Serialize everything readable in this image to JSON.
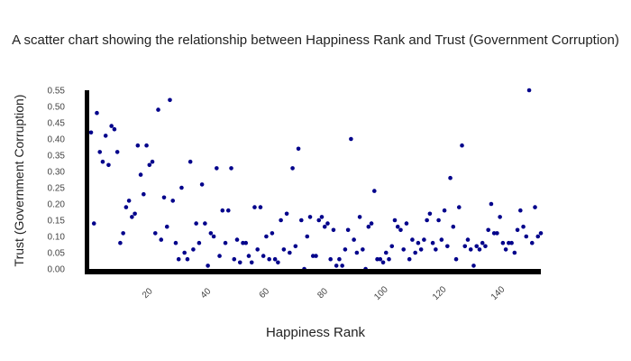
{
  "chart_data": {
    "type": "scatter",
    "title": "A scatter chart showing the relationship between Happiness Rank and Trust (Government Corruption)",
    "xlabel": "Happiness Rank",
    "ylabel": "Trust (Government Corruption)",
    "xlim": [
      1,
      155
    ],
    "ylim": [
      0,
      0.55
    ],
    "x_ticks": [
      20,
      40,
      60,
      80,
      100,
      120,
      140
    ],
    "y_ticks": [
      "0.00",
      "0.05",
      "0.10",
      "0.15",
      "0.20",
      "0.25",
      "0.30",
      "0.35",
      "0.40",
      "0.45",
      "0.50",
      "0.55"
    ],
    "grid": false,
    "legend": "none",
    "colors": {
      "marker": "#00008b",
      "axis": "#000000"
    },
    "series": [
      {
        "x": [
          1,
          2,
          3,
          4,
          5,
          6,
          7,
          8,
          9,
          10,
          11,
          12,
          13,
          14,
          15,
          16,
          17,
          18,
          19,
          20,
          21,
          22,
          23,
          24,
          25,
          26,
          27,
          28,
          29,
          30,
          31,
          32,
          33,
          34,
          35,
          36,
          37,
          38,
          39,
          40,
          41,
          42,
          43,
          44,
          45,
          46,
          47,
          48,
          49,
          50,
          51,
          52,
          53,
          54,
          55,
          56,
          57,
          58,
          59,
          60,
          61,
          62,
          63,
          64,
          65,
          66,
          67,
          68,
          69,
          70,
          71,
          72,
          73,
          74,
          75,
          76,
          77,
          78,
          79,
          80,
          81,
          82,
          83,
          84,
          85,
          86,
          87,
          88,
          89,
          90,
          91,
          92,
          93,
          94,
          95,
          96,
          97,
          98,
          99,
          100,
          101,
          102,
          103,
          104,
          105,
          106,
          107,
          108,
          109,
          110,
          111,
          112,
          113,
          114,
          115,
          116,
          117,
          118,
          119,
          120,
          121,
          122,
          123,
          124,
          125,
          126,
          127,
          128,
          129,
          130,
          131,
          132,
          133,
          134,
          135,
          136,
          137,
          138,
          139,
          140,
          141,
          142,
          143,
          144,
          145,
          146,
          147,
          148,
          149,
          150,
          151,
          152,
          153,
          154,
          155
        ],
        "y": [
          0.42,
          0.14,
          0.48,
          0.36,
          0.33,
          0.41,
          0.32,
          0.44,
          0.43,
          0.36,
          0.08,
          0.11,
          0.19,
          0.21,
          0.16,
          0.17,
          0.38,
          0.29,
          0.23,
          0.38,
          0.32,
          0.33,
          0.11,
          0.49,
          0.09,
          0.22,
          0.13,
          0.52,
          0.21,
          0.08,
          0.03,
          0.25,
          0.05,
          0.03,
          0.33,
          0.06,
          0.14,
          0.08,
          0.26,
          0.14,
          0.01,
          0.11,
          0.1,
          0.31,
          0.04,
          0.18,
          0.08,
          0.18,
          0.31,
          0.03,
          0.09,
          0.02,
          0.08,
          0.08,
          0.04,
          0.02,
          0.19,
          0.06,
          0.19,
          0.04,
          0.1,
          0.03,
          0.11,
          0.03,
          0.02,
          0.15,
          0.06,
          0.17,
          0.05,
          0.31,
          0.07,
          0.37,
          0.15,
          0.0,
          0.1,
          0.16,
          0.04,
          0.04,
          0.15,
          0.16,
          0.13,
          0.14,
          0.03,
          0.12,
          0.01,
          0.03,
          0.01,
          0.06,
          0.12,
          0.4,
          0.09,
          0.05,
          0.16,
          0.06,
          0.0,
          0.13,
          0.14,
          0.24,
          0.03,
          0.03,
          0.02,
          0.05,
          0.03,
          0.07,
          0.15,
          0.13,
          0.12,
          0.06,
          0.14,
          0.03,
          0.09,
          0.05,
          0.08,
          0.06,
          0.09,
          0.15,
          0.17,
          0.08,
          0.06,
          0.15,
          0.09,
          0.18,
          0.07,
          0.28,
          0.13,
          0.03,
          0.19,
          0.38,
          0.07,
          0.09,
          0.06,
          0.01,
          0.07,
          0.06,
          0.08,
          0.07,
          0.12,
          0.2,
          0.11,
          0.11,
          0.16,
          0.08,
          0.06,
          0.08,
          0.08,
          0.05,
          0.12,
          0.18,
          0.13,
          0.1,
          0.55,
          0.08,
          0.19,
          0.1,
          0.11
        ]
      }
    ]
  }
}
